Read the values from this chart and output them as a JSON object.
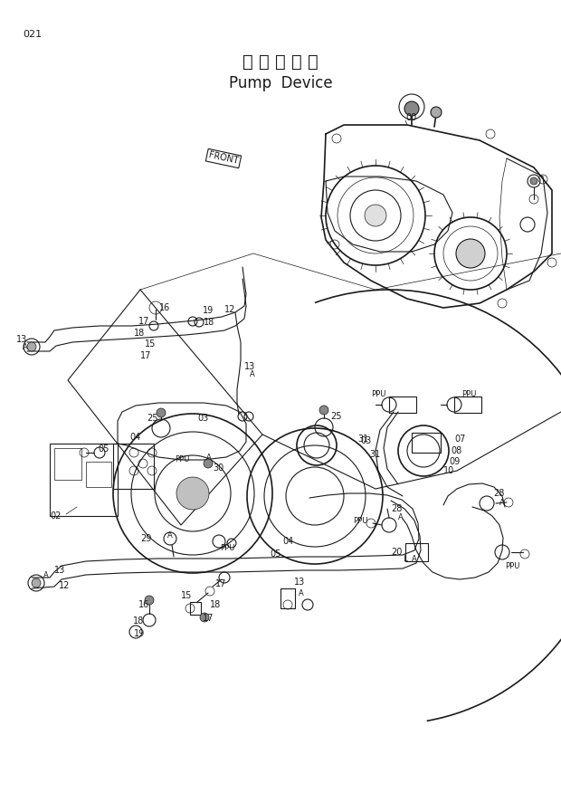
{
  "title_japanese": "ポ ン プ 装 置",
  "title_english": "Pump  Device",
  "page_number": "021",
  "background_color": "#ffffff",
  "line_color": "#1a1a1a",
  "figsize": [
    6.2,
    8.76
  ],
  "dpi": 100,
  "xlim": [
    0,
    620
  ],
  "ylim": [
    0,
    876
  ]
}
